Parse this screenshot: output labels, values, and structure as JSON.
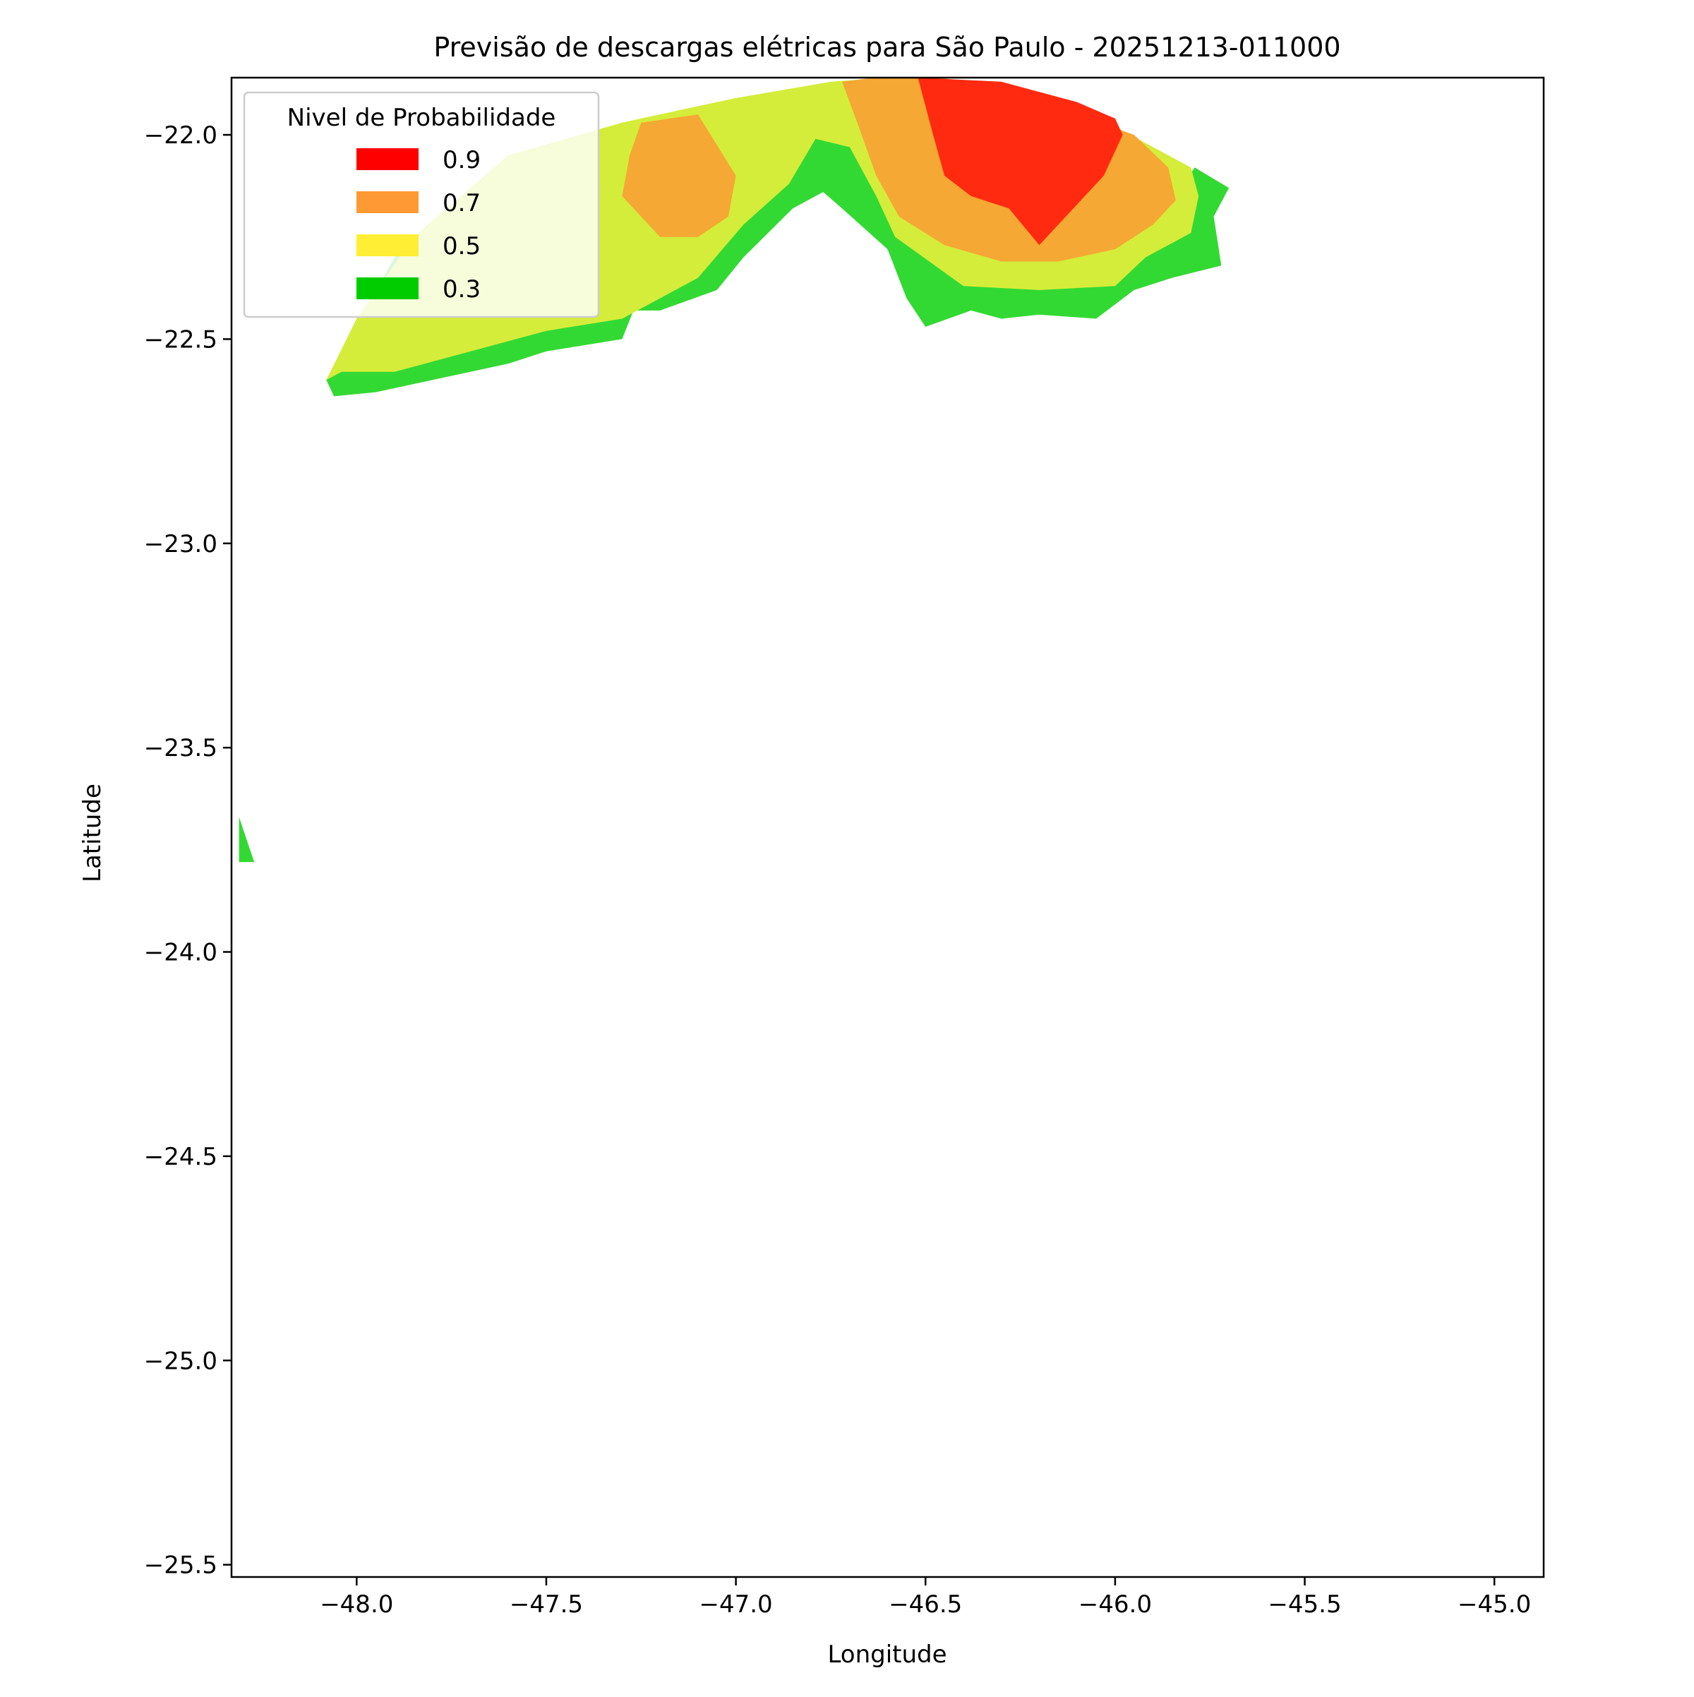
{
  "chart_data": {
    "type": "filled-contour-map",
    "title": "Previsão de descargas elétricas para São Paulo - 20251213-011000",
    "xlabel": "Longitude",
    "ylabel": "Latitude",
    "xlim": [
      -48.33,
      -44.87
    ],
    "ylim": [
      -25.53,
      -21.86
    ],
    "x_ticks": [
      -48.0,
      -47.5,
      -47.0,
      -46.5,
      -46.0,
      -45.5,
      -45.0
    ],
    "x_tick_labels": [
      "−48.0",
      "−47.5",
      "−47.0",
      "−46.5",
      "−46.0",
      "−45.5",
      "−45.0"
    ],
    "y_ticks": [
      -22.0,
      -22.5,
      -23.0,
      -23.5,
      -24.0,
      -24.5,
      -25.0,
      -25.5
    ],
    "y_tick_labels": [
      "−22.0",
      "−22.5",
      "−23.0",
      "−23.5",
      "−24.0",
      "−24.5",
      "−25.0",
      "−25.5"
    ],
    "grid": false,
    "legend": {
      "title": "Nivel de Probabilidade",
      "placement": "top-left",
      "entries": [
        {
          "label": "0.9",
          "color": "#ff0000"
        },
        {
          "label": "0.7",
          "color": "#ff9933"
        },
        {
          "label": "0.5",
          "color": "#ffee33"
        },
        {
          "label": "0.3",
          "color": "#00cc00"
        }
      ]
    },
    "region_colors": {
      "0.3": "#33d933",
      "0.5": "#d4ed3a",
      "0.7": "#f5a833",
      "0.9": "#ff2a0f"
    },
    "regions": [
      {
        "level": "0.3",
        "points": [
          [
            -48.08,
            -22.6
          ],
          [
            -48.06,
            -22.64
          ],
          [
            -47.95,
            -22.63
          ],
          [
            -47.6,
            -22.56
          ],
          [
            -47.5,
            -22.53
          ],
          [
            -47.3,
            -22.5
          ],
          [
            -47.27,
            -22.43
          ],
          [
            -47.2,
            -22.43
          ],
          [
            -47.05,
            -22.38
          ],
          [
            -46.98,
            -22.3
          ],
          [
            -46.85,
            -22.18
          ],
          [
            -46.77,
            -22.14
          ],
          [
            -46.72,
            -22.18
          ],
          [
            -46.6,
            -22.28
          ],
          [
            -46.55,
            -22.4
          ],
          [
            -46.5,
            -22.47
          ],
          [
            -46.38,
            -22.43
          ],
          [
            -46.3,
            -22.45
          ],
          [
            -46.2,
            -22.44
          ],
          [
            -46.05,
            -22.45
          ],
          [
            -45.95,
            -22.38
          ],
          [
            -45.85,
            -22.35
          ],
          [
            -45.72,
            -22.32
          ],
          [
            -45.74,
            -22.2
          ],
          [
            -45.7,
            -22.13
          ],
          [
            -45.79,
            -22.08
          ],
          [
            -45.88,
            -22.2
          ],
          [
            -46.0,
            -22.27
          ],
          [
            -46.2,
            -22.3
          ],
          [
            -46.45,
            -22.25
          ],
          [
            -46.55,
            -22.05
          ],
          [
            -46.6,
            -21.87
          ],
          [
            -46.85,
            -21.9
          ],
          [
            -47.2,
            -21.96
          ],
          [
            -47.6,
            -22.05
          ],
          [
            -47.9,
            -22.3
          ]
        ]
      },
      {
        "level": "0.5",
        "points": [
          [
            -48.08,
            -22.6
          ],
          [
            -48.04,
            -22.58
          ],
          [
            -47.9,
            -22.58
          ],
          [
            -47.7,
            -22.53
          ],
          [
            -47.5,
            -22.48
          ],
          [
            -47.3,
            -22.45
          ],
          [
            -47.1,
            -22.35
          ],
          [
            -46.98,
            -22.22
          ],
          [
            -46.86,
            -22.12
          ],
          [
            -46.79,
            -22.01
          ],
          [
            -46.7,
            -22.03
          ],
          [
            -46.63,
            -22.15
          ],
          [
            -46.58,
            -22.25
          ],
          [
            -46.4,
            -22.37
          ],
          [
            -46.2,
            -22.38
          ],
          [
            -46.0,
            -22.37
          ],
          [
            -45.92,
            -22.3
          ],
          [
            -45.8,
            -22.24
          ],
          [
            -45.78,
            -22.15
          ],
          [
            -45.8,
            -22.08
          ],
          [
            -45.9,
            -22.03
          ],
          [
            -46.0,
            -21.98
          ],
          [
            -46.3,
            -21.88
          ],
          [
            -46.6,
            -21.86
          ],
          [
            -46.75,
            -21.87
          ],
          [
            -47.0,
            -21.91
          ],
          [
            -47.3,
            -21.97
          ],
          [
            -47.6,
            -22.05
          ],
          [
            -47.85,
            -22.25
          ],
          [
            -48.0,
            -22.45
          ]
        ]
      },
      {
        "level": "0.7",
        "points": [
          [
            -46.72,
            -21.87
          ],
          [
            -46.68,
            -21.97
          ],
          [
            -46.63,
            -22.1
          ],
          [
            -46.57,
            -22.2
          ],
          [
            -46.45,
            -22.27
          ],
          [
            -46.3,
            -22.31
          ],
          [
            -46.15,
            -22.31
          ],
          [
            -46.0,
            -22.28
          ],
          [
            -45.9,
            -22.22
          ],
          [
            -45.84,
            -22.16
          ],
          [
            -45.86,
            -22.08
          ],
          [
            -45.95,
            -22.0
          ],
          [
            -46.1,
            -21.95
          ],
          [
            -46.3,
            -21.88
          ],
          [
            -46.55,
            -21.85
          ]
        ]
      },
      {
        "level": "0.7",
        "points": [
          [
            -47.25,
            -21.97
          ],
          [
            -47.1,
            -21.95
          ],
          [
            -47.0,
            -22.1
          ],
          [
            -47.02,
            -22.2
          ],
          [
            -47.1,
            -22.25
          ],
          [
            -47.2,
            -22.25
          ],
          [
            -47.3,
            -22.15
          ],
          [
            -47.28,
            -22.05
          ]
        ]
      },
      {
        "level": "0.9",
        "points": [
          [
            -46.52,
            -21.86
          ],
          [
            -46.48,
            -22.0
          ],
          [
            -46.45,
            -22.1
          ],
          [
            -46.38,
            -22.15
          ],
          [
            -46.28,
            -22.18
          ],
          [
            -46.2,
            -22.27
          ],
          [
            -46.15,
            -22.22
          ],
          [
            -46.08,
            -22.15
          ],
          [
            -46.03,
            -22.1
          ],
          [
            -45.98,
            -22.0
          ],
          [
            -46.0,
            -21.96
          ],
          [
            -46.1,
            -21.92
          ],
          [
            -46.3,
            -21.87
          ]
        ]
      },
      {
        "level": "0.3",
        "points": [
          [
            -48.31,
            -23.67
          ],
          [
            -48.27,
            -23.78
          ],
          [
            -48.31,
            -23.78
          ]
        ]
      }
    ]
  }
}
